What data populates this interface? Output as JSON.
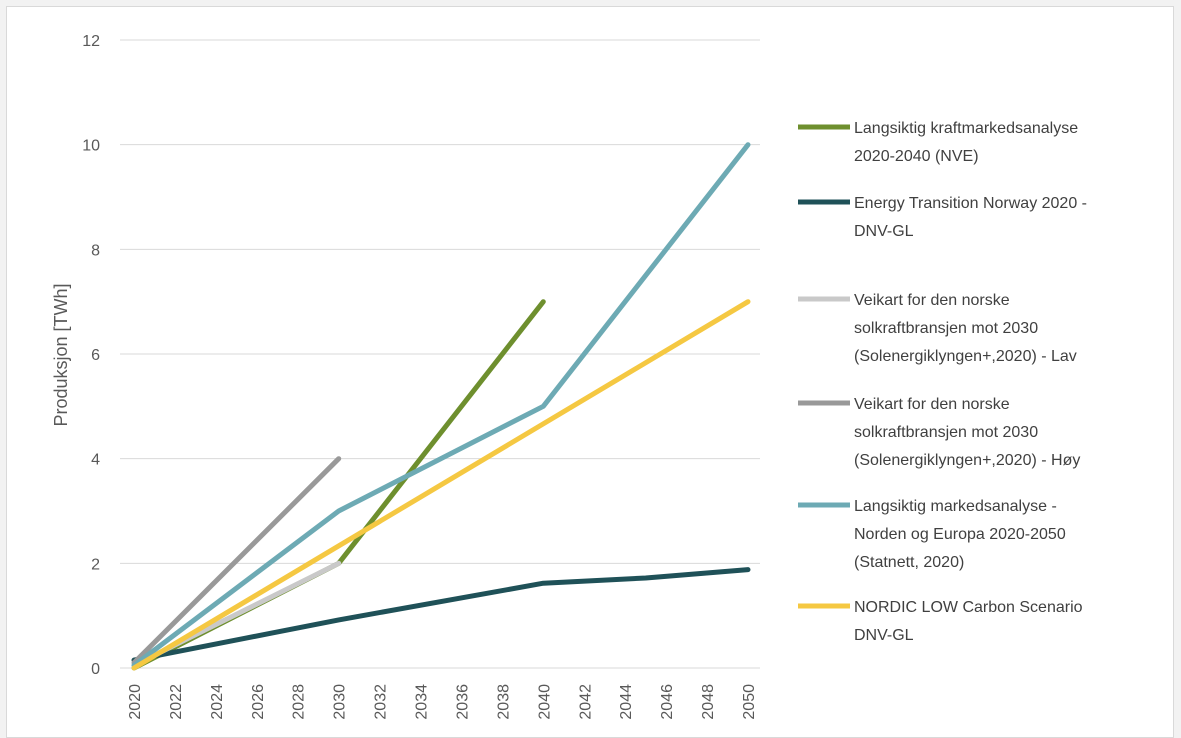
{
  "chart_data": {
    "type": "line",
    "title": "",
    "xlabel": "",
    "ylabel": "Produksjon [TWh]",
    "ylim": [
      0,
      12
    ],
    "yticks": [
      "0",
      "2",
      "4",
      "6",
      "8",
      "10",
      "12"
    ],
    "xlim": [
      2020,
      2050
    ],
    "xticks": [
      "2020",
      "2022",
      "2024",
      "2026",
      "2028",
      "2030",
      "2032",
      "2034",
      "2036",
      "2038",
      "2040",
      "2042",
      "2044",
      "2046",
      "2048",
      "2050"
    ],
    "grid": true,
    "legend_position": "right",
    "series": [
      {
        "name": "Langsiktig kraftmarkedsanalyse 2020-2040 (NVE)",
        "legend_lines": [
          "Langsiktig kraftmarkedsanalyse",
          "2020-2040 (NVE)"
        ],
        "color": "#6e8f2e",
        "points": [
          [
            2020,
            0
          ],
          [
            2030,
            2
          ],
          [
            2040,
            7
          ]
        ]
      },
      {
        "name": "Energy Transition Norway 2020 - DNV-GL",
        "legend_lines": [
          "Energy Transition Norway 2020 -",
          "DNV-GL"
        ],
        "color": "#1f5158",
        "points": [
          [
            2020,
            0.15
          ],
          [
            2030,
            0.92
          ],
          [
            2040,
            1.62
          ],
          [
            2045,
            1.72
          ],
          [
            2050,
            1.88
          ]
        ]
      },
      {
        "name": "Veikart for den norske solkraftbransjen mot 2030 (Solenergiklyngen+,2020) - Lav",
        "legend_lines": [
          "Veikart for den norske",
          "solkraftbransjen mot 2030",
          "(Solenergiklyngen+,2020) - Lav"
        ],
        "color": "#c9c9c9",
        "points": [
          [
            2020,
            0.05
          ],
          [
            2030,
            2
          ]
        ]
      },
      {
        "name": "Veikart for den norske solkraftbransjen mot 2030 (Solenergiklyngen+,2020) - Høy",
        "legend_lines": [
          "Veikart for den norske",
          "solkraftbransjen mot 2030",
          "(Solenergiklyngen+,2020) - Høy"
        ],
        "color": "#999999",
        "points": [
          [
            2020,
            0.1
          ],
          [
            2030,
            4
          ]
        ]
      },
      {
        "name": "Langsiktig markedsanalyse - Norden og Europa 2020-2050 (Statnett, 2020)",
        "legend_lines": [
          "Langsiktig markedsanalyse -",
          "Norden og Europa 2020-2050",
          "(Statnett, 2020)"
        ],
        "color": "#6daab4",
        "points": [
          [
            2020,
            0.05
          ],
          [
            2030,
            3
          ],
          [
            2040,
            5
          ],
          [
            2050,
            10
          ]
        ]
      },
      {
        "name": "NORDIC LOW Carbon Scenario DNV-GL",
        "legend_lines": [
          "NORDIC LOW Carbon Scenario",
          "DNV-GL"
        ],
        "color": "#f5c842",
        "points": [
          [
            2020,
            0
          ],
          [
            2050,
            7
          ]
        ]
      }
    ]
  }
}
